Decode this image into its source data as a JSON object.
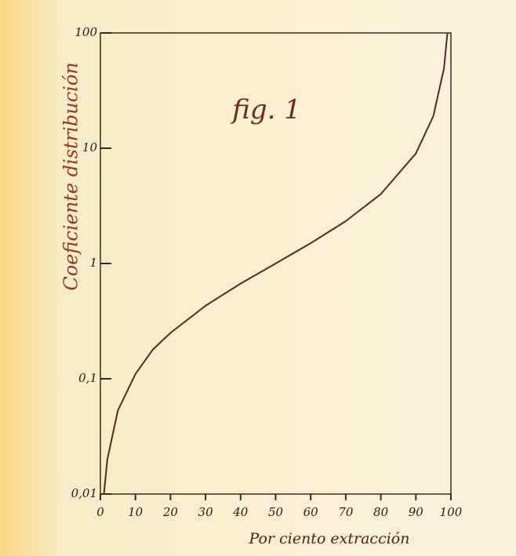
{
  "chart_data": {
    "type": "line",
    "title": "fig. 1",
    "xlabel": "Por ciento extracción",
    "ylabel": "Coeficiente distribución",
    "x": [
      1,
      2,
      5,
      10,
      15,
      20,
      30,
      40,
      50,
      60,
      70,
      80,
      90,
      95,
      98,
      99
    ],
    "series": [
      {
        "name": "Coeficiente distribución",
        "color": "#5a2a14",
        "values": [
          0.01,
          0.02,
          0.053,
          0.11,
          0.18,
          0.25,
          0.43,
          0.67,
          1,
          1.5,
          2.33,
          4,
          9,
          19,
          49,
          99
        ]
      }
    ],
    "xlim": [
      0,
      100
    ],
    "xticks": [
      0,
      10,
      20,
      30,
      40,
      50,
      60,
      70,
      80,
      90,
      100
    ],
    "ylim": [
      0.01,
      100
    ],
    "yticks": [
      {
        "value": 0.01,
        "label": "0,01"
      },
      {
        "value": 0.1,
        "label": "0,1"
      },
      1,
      10,
      100
    ],
    "ylog": true,
    "grid": false
  }
}
